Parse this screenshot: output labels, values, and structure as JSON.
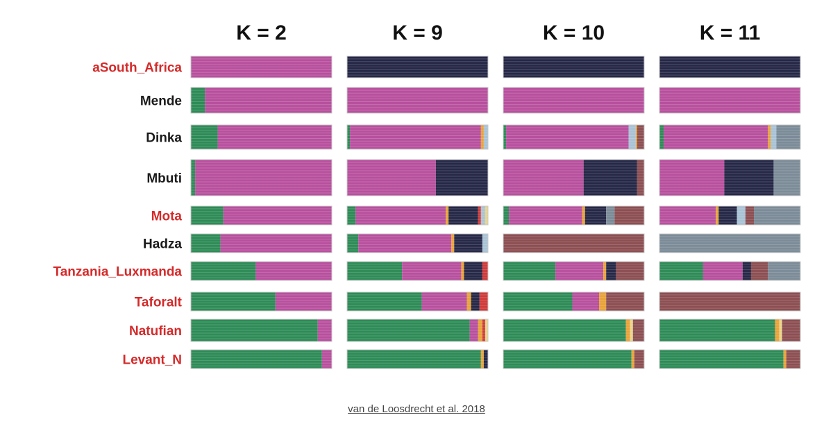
{
  "chart_data": {
    "type": "admixture-stacked-bar",
    "title": "",
    "panels": [
      "K = 2",
      "K = 9",
      "K = 10",
      "K = 11"
    ],
    "populations": [
      {
        "name": "aSouth_Africa",
        "ancient": true
      },
      {
        "name": "Mende",
        "ancient": false
      },
      {
        "name": "Dinka",
        "ancient": false
      },
      {
        "name": "Mbuti",
        "ancient": false
      },
      {
        "name": "Mota",
        "ancient": true
      },
      {
        "name": "Hadza",
        "ancient": false
      },
      {
        "name": "Tanzania_Luxmanda",
        "ancient": true
      },
      {
        "name": "Taforalt",
        "ancient": true
      },
      {
        "name": "Natufian",
        "ancient": true
      },
      {
        "name": "Levant_N",
        "ancient": true
      }
    ],
    "component_colors": {
      "green": "#2e8b57",
      "pink": "#b8509e",
      "navy": "#262847",
      "brown": "#8c4f52",
      "grayblue": "#7c8b98",
      "orange": "#e8a33a",
      "red": "#d03a3a",
      "lightblue": "#a9c3d6",
      "yellow": "#e8d48a"
    },
    "proportions": {
      "K = 2": [
        [
          [
            "pink",
            1.0
          ]
        ],
        [
          [
            "green",
            0.1
          ],
          [
            "pink",
            0.9
          ]
        ],
        [
          [
            "green",
            0.19
          ],
          [
            "pink",
            0.81
          ]
        ],
        [
          [
            "green",
            0.03
          ],
          [
            "pink",
            0.97
          ]
        ],
        [
          [
            "green",
            0.23
          ],
          [
            "pink",
            0.77
          ]
        ],
        [
          [
            "green",
            0.21
          ],
          [
            "pink",
            0.79
          ]
        ],
        [
          [
            "green",
            0.46
          ],
          [
            "pink",
            0.54
          ]
        ],
        [
          [
            "green",
            0.6
          ],
          [
            "pink",
            0.4
          ]
        ],
        [
          [
            "green",
            0.9
          ],
          [
            "pink",
            0.1
          ]
        ],
        [
          [
            "green",
            0.93
          ],
          [
            "pink",
            0.07
          ]
        ]
      ],
      "K = 9": [
        [
          [
            "navy",
            1.0
          ]
        ],
        [
          [
            "pink",
            1.0
          ]
        ],
        [
          [
            "green",
            0.02
          ],
          [
            "pink",
            0.93
          ],
          [
            "orange",
            0.02
          ],
          [
            "lightblue",
            0.03
          ]
        ],
        [
          [
            "pink",
            0.63
          ],
          [
            "navy",
            0.37
          ]
        ],
        [
          [
            "green",
            0.06
          ],
          [
            "pink",
            0.64
          ],
          [
            "orange",
            0.02
          ],
          [
            "navy",
            0.21
          ],
          [
            "red",
            0.02
          ],
          [
            "lightblue",
            0.03
          ],
          [
            "yellow",
            0.02
          ]
        ],
        [
          [
            "green",
            0.08
          ],
          [
            "pink",
            0.66
          ],
          [
            "orange",
            0.02
          ],
          [
            "navy",
            0.2
          ],
          [
            "lightblue",
            0.04
          ]
        ],
        [
          [
            "green",
            0.39
          ],
          [
            "pink",
            0.42
          ],
          [
            "orange",
            0.02
          ],
          [
            "navy",
            0.13
          ],
          [
            "red",
            0.04
          ]
        ],
        [
          [
            "green",
            0.53
          ],
          [
            "pink",
            0.32
          ],
          [
            "orange",
            0.03
          ],
          [
            "navy",
            0.06
          ],
          [
            "red",
            0.06
          ]
        ],
        [
          [
            "green",
            0.87
          ],
          [
            "pink",
            0.06
          ],
          [
            "orange",
            0.03
          ],
          [
            "red",
            0.02
          ],
          [
            "yellow",
            0.02
          ]
        ],
        [
          [
            "green",
            0.95
          ],
          [
            "orange",
            0.02
          ],
          [
            "navy",
            0.03
          ]
        ]
      ],
      "K = 10": [
        [
          [
            "navy",
            1.0
          ]
        ],
        [
          [
            "pink",
            1.0
          ]
        ],
        [
          [
            "green",
            0.02
          ],
          [
            "pink",
            0.87
          ],
          [
            "lightblue",
            0.05
          ],
          [
            "orange",
            0.01
          ],
          [
            "brown",
            0.05
          ]
        ],
        [
          [
            "pink",
            0.57
          ],
          [
            "navy",
            0.38
          ],
          [
            "brown",
            0.05
          ]
        ],
        [
          [
            "green",
            0.04
          ],
          [
            "pink",
            0.52
          ],
          [
            "orange",
            0.02
          ],
          [
            "navy",
            0.15
          ],
          [
            "grayblue",
            0.06
          ],
          [
            "brown",
            0.21
          ]
        ],
        [
          [
            "brown",
            1.0
          ]
        ],
        [
          [
            "green",
            0.37
          ],
          [
            "pink",
            0.34
          ],
          [
            "orange",
            0.02
          ],
          [
            "navy",
            0.07
          ],
          [
            "brown",
            0.2
          ]
        ],
        [
          [
            "green",
            0.49
          ],
          [
            "pink",
            0.19
          ],
          [
            "orange",
            0.05
          ],
          [
            "brown",
            0.27
          ]
        ],
        [
          [
            "green",
            0.87
          ],
          [
            "orange",
            0.03
          ],
          [
            "yellow",
            0.02
          ],
          [
            "brown",
            0.08
          ]
        ],
        [
          [
            "green",
            0.91
          ],
          [
            "orange",
            0.02
          ],
          [
            "brown",
            0.07
          ]
        ]
      ],
      "K = 11": [
        [
          [
            "navy",
            1.0
          ]
        ],
        [
          [
            "pink",
            1.0
          ]
        ],
        [
          [
            "green",
            0.03
          ],
          [
            "pink",
            0.74
          ],
          [
            "orange",
            0.02
          ],
          [
            "lightblue",
            0.04
          ],
          [
            "grayblue",
            0.17
          ]
        ],
        [
          [
            "pink",
            0.46
          ],
          [
            "navy",
            0.35
          ],
          [
            "grayblue",
            0.19
          ]
        ],
        [
          [
            "pink",
            0.4
          ],
          [
            "orange",
            0.02
          ],
          [
            "navy",
            0.13
          ],
          [
            "lightblue",
            0.06
          ],
          [
            "brown",
            0.06
          ],
          [
            "grayblue",
            0.33
          ]
        ],
        [
          [
            "grayblue",
            1.0
          ]
        ],
        [
          [
            "green",
            0.31
          ],
          [
            "pink",
            0.28
          ],
          [
            "navy",
            0.06
          ],
          [
            "brown",
            0.12
          ],
          [
            "grayblue",
            0.23
          ]
        ],
        [
          [
            "brown",
            1.0
          ]
        ],
        [
          [
            "green",
            0.82
          ],
          [
            "orange",
            0.03
          ],
          [
            "yellow",
            0.02
          ],
          [
            "brown",
            0.13
          ]
        ],
        [
          [
            "green",
            0.88
          ],
          [
            "orange",
            0.02
          ],
          [
            "brown",
            0.1
          ]
        ]
      ]
    }
  },
  "citation": "van de Loosdrecht et al. 2018",
  "label_colors": {
    "ancient": "#d42a2a",
    "modern": "#1a1a1a"
  }
}
